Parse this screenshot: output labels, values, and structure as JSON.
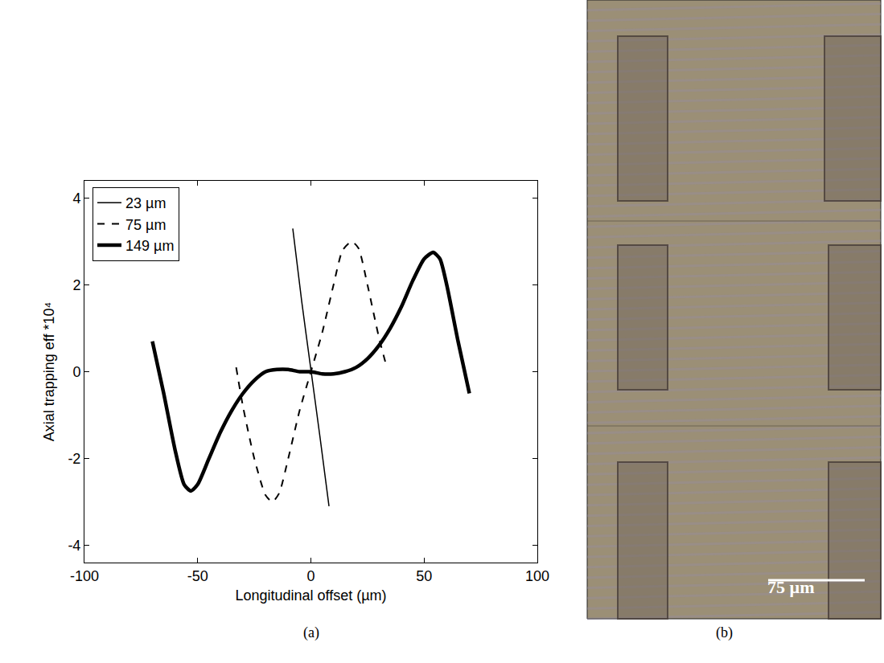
{
  "chart_data": {
    "type": "line",
    "panel_label": "(a)",
    "x_label": "Longitudinal offset (µm)",
    "y_label": "Axial trapping eff *10⁴",
    "xlim": [
      -100,
      100
    ],
    "xticks": [
      -100,
      -50,
      0,
      50,
      100
    ],
    "ylim": [
      -4.4,
      4.4
    ],
    "yticks": [
      -4,
      -2,
      0,
      2,
      4
    ],
    "grid": false,
    "legend": "upper left",
    "series": [
      {
        "name": "23 µm",
        "color": "#000000",
        "line_style": "solid",
        "x": [
          -8,
          -4,
          0,
          4,
          8
        ],
        "values": [
          3.3,
          1.6,
          0.05,
          -1.5,
          -3.1
        ]
      },
      {
        "name": "75 µm",
        "color": "#000000",
        "line_style": "dash",
        "x": [
          -33,
          -30,
          -25,
          -20,
          -17,
          -14,
          -10,
          -5,
          0,
          5,
          10,
          14,
          18,
          21,
          25,
          30,
          33
        ],
        "values": [
          0.1,
          -0.8,
          -2.0,
          -2.85,
          -3.0,
          -2.8,
          -2.0,
          -0.9,
          0.0,
          0.9,
          2.0,
          2.8,
          3.0,
          2.85,
          2.0,
          0.8,
          0.2
        ]
      },
      {
        "name": "149 µm",
        "color": "#000000",
        "line_style": "solid",
        "x": [
          -70,
          -65,
          -60,
          -56,
          -53,
          -50,
          -45,
          -40,
          -35,
          -30,
          -25,
          -20,
          -15,
          -10,
          -5,
          0,
          5,
          10,
          15,
          20,
          25,
          30,
          35,
          40,
          45,
          50,
          54,
          57,
          60,
          65,
          70
        ],
        "values": [
          0.7,
          -0.5,
          -1.8,
          -2.6,
          -2.75,
          -2.6,
          -2.0,
          -1.4,
          -0.9,
          -0.5,
          -0.2,
          0.0,
          0.05,
          0.05,
          0.0,
          0.0,
          -0.05,
          -0.05,
          0.0,
          0.1,
          0.3,
          0.6,
          1.0,
          1.5,
          2.1,
          2.6,
          2.75,
          2.6,
          2.0,
          0.7,
          -0.5
        ]
      }
    ]
  },
  "image_panel": {
    "panel_label": "(b)",
    "scale_bar": "75 µm"
  }
}
